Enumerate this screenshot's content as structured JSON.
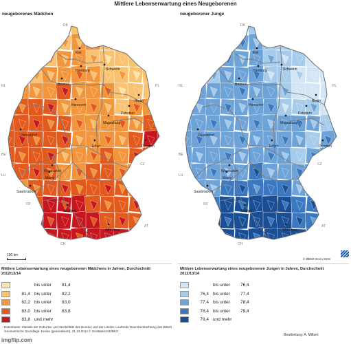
{
  "title": "Mittlere Lebenserwartung eines Neugeborenen",
  "maps": {
    "girls": {
      "subtitle": "neugeborenes Mädchen"
    },
    "boys": {
      "subtitle": "neugeborener Junge"
    }
  },
  "cities": [
    {
      "name": "Kiel"
    },
    {
      "name": "Schwerin"
    },
    {
      "name": "Hamburg"
    },
    {
      "name": "Bremen"
    },
    {
      "name": "Berlin"
    },
    {
      "name": "Hannover"
    },
    {
      "name": "Potsdam"
    },
    {
      "name": "Magdeburg"
    },
    {
      "name": "Düsseldorf"
    },
    {
      "name": "Erfurt"
    },
    {
      "name": "Dresden"
    },
    {
      "name": "Wiesbaden"
    },
    {
      "name": "Mainz"
    },
    {
      "name": "Saarbrücken"
    },
    {
      "name": "Stuttgart"
    },
    {
      "name": "München"
    }
  ],
  "neighbors": [
    "DK",
    "NL",
    "PL",
    "BE",
    "LU",
    "CZ",
    "FR",
    "AT",
    "CH"
  ],
  "colors": {
    "girls": [
      "#fbe6a8",
      "#f9c271",
      "#f2963d",
      "#e35a1e",
      "#c8161e"
    ],
    "boys": [
      "#d3e6f6",
      "#a6cbeb",
      "#6ea3d8",
      "#3b78bf",
      "#1a4f96"
    ],
    "border": "#8a8a8a"
  },
  "legend": {
    "girls": {
      "title": "Mittlere Lebenserwartung eines neugeborenen Mädchens in Jahren, Durchschnitt 2012/13/14",
      "classes": [
        {
          "lo": "",
          "mid": "bis unter",
          "hi": "81,4"
        },
        {
          "lo": "81,4",
          "mid": "bis unter",
          "hi": "82,2"
        },
        {
          "lo": "82,2",
          "mid": "bis unter",
          "hi": "83,0"
        },
        {
          "lo": "83,0",
          "mid": "bis unter",
          "hi": "83,8"
        },
        {
          "lo": "83,8",
          "mid": "und mehr",
          "hi": ""
        }
      ]
    },
    "boys": {
      "title": "Mittlere Lebenserwartung eines neugeborenen Jungen in Jahren, Durchschnitt 2012/13/14",
      "classes": [
        {
          "lo": "",
          "mid": "bis unter",
          "hi": "76,4"
        },
        {
          "lo": "76,4",
          "mid": "bis unter",
          "hi": "77,4"
        },
        {
          "lo": "77,4",
          "mid": "bis unter",
          "hi": "78,4"
        },
        {
          "lo": "78,4",
          "mid": "bis unter",
          "hi": "79,4"
        },
        {
          "lo": "79,4",
          "mid": "und mehr",
          "hi": ""
        }
      ]
    }
  },
  "scale_label": "100 km",
  "copyright": "© BBSR Bonn 2016",
  "footer_line1": "Datenbasis: Statistik der Geburten und Sterbefälle des Bundes und der Länder, Laufende Raumbeobachtung des BBSR",
  "footer_line2": "Geometrische Grundlage: Kreise (generalisiert), 31.12.2014 © GeoBasis-DE/BKG",
  "credit": "Bearbeitung: A. Milbert",
  "watermark": "imgflip.com"
}
